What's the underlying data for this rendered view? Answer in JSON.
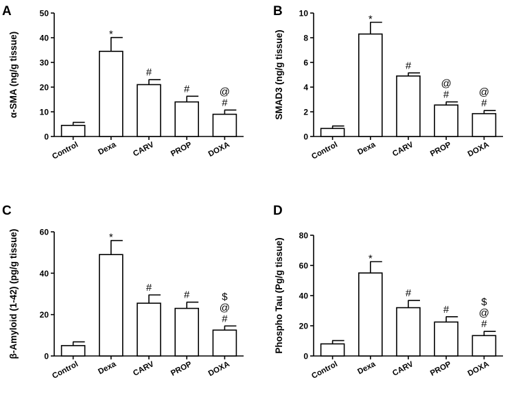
{
  "chart_data": [
    {
      "type": "bar",
      "panel_label": "A",
      "categories": [
        "Control",
        "Dexa",
        "CARV",
        "PROP",
        "DOXA"
      ],
      "values": [
        4.5,
        34.5,
        21,
        14,
        9
      ],
      "errors": [
        1.2,
        5.6,
        2,
        2.3,
        1.7
      ],
      "annotations": [
        [],
        [
          "*"
        ],
        [
          "#"
        ],
        [
          "#"
        ],
        [
          "@",
          "#"
        ]
      ],
      "ylabel": "α-SMA (ng/g tissue)",
      "ylim": [
        0,
        50
      ],
      "yticks": [
        0,
        10,
        20,
        30,
        40,
        50
      ],
      "grid": false
    },
    {
      "type": "bar",
      "panel_label": "B",
      "categories": [
        "Control",
        "Dexa",
        "CARV",
        "PROP",
        "DOXA"
      ],
      "values": [
        0.65,
        8.3,
        4.9,
        2.55,
        1.85
      ],
      "errors": [
        0.2,
        0.95,
        0.25,
        0.25,
        0.25
      ],
      "annotations": [
        [],
        [
          "*"
        ],
        [
          "#"
        ],
        [
          "@",
          "#"
        ],
        [
          "@",
          "#"
        ]
      ],
      "ylabel": "SMAD3 (ng/g tissue)",
      "ylim": [
        0,
        10
      ],
      "yticks": [
        0,
        2,
        4,
        6,
        8,
        10
      ],
      "grid": false
    },
    {
      "type": "bar",
      "panel_label": "C",
      "categories": [
        "Control",
        "Dexa",
        "CARV",
        "PROP",
        "DOXA"
      ],
      "values": [
        5,
        49,
        25.5,
        23,
        12.5
      ],
      "errors": [
        1.8,
        6.8,
        4,
        3,
        2
      ],
      "annotations": [
        [],
        [
          "*"
        ],
        [
          "#"
        ],
        [
          "#"
        ],
        [
          "$",
          "@",
          "#"
        ]
      ],
      "ylabel": "β-Amyloid (1-42) (pg/g tissue)",
      "ylim": [
        0,
        60
      ],
      "yticks": [
        0,
        20,
        40,
        60
      ],
      "grid": false
    },
    {
      "type": "bar",
      "panel_label": "D",
      "categories": [
        "Control",
        "Dexa",
        "CARV",
        "PROP",
        "DOXA"
      ],
      "values": [
        8,
        55,
        32,
        22.5,
        13.5
      ],
      "errors": [
        2.2,
        7.5,
        4.8,
        3.5,
        2.8
      ],
      "annotations": [
        [],
        [
          "*"
        ],
        [
          "#"
        ],
        [
          "#"
        ],
        [
          "$",
          "@",
          "#"
        ]
      ],
      "ylabel": "Phospho Tau (Pg/g tissue)",
      "ylim": [
        0,
        80
      ],
      "yticks": [
        0,
        20,
        40,
        60,
        80
      ],
      "grid": false
    }
  ]
}
